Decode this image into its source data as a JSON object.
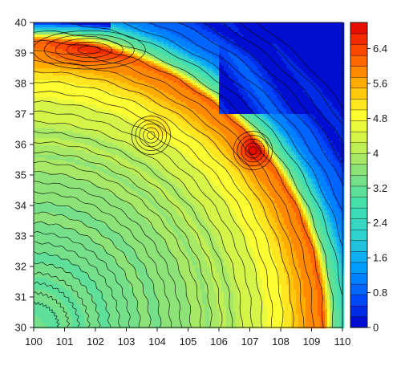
{
  "chart_data": {
    "type": "heatmap",
    "subtype": "filled-contour",
    "title": "",
    "xlabel": "",
    "ylabel": "",
    "xlim": [
      100,
      110
    ],
    "ylim": [
      30,
      40
    ],
    "x_ticks": [
      "100",
      "101",
      "102",
      "103",
      "104",
      "105",
      "106",
      "107",
      "108",
      "109",
      "110"
    ],
    "y_ticks": [
      "30",
      "31",
      "32",
      "33",
      "34",
      "35",
      "36",
      "37",
      "38",
      "39",
      "40"
    ],
    "colorbar": {
      "range": [
        0,
        7.0
      ],
      "ticks": [
        "0",
        "0.8",
        "1.6",
        "2.4",
        "3.2",
        "4",
        "4.8",
        "5.6",
        "6.4"
      ],
      "tick_values": [
        0,
        0.8,
        1.6,
        2.4,
        3.2,
        4.0,
        4.8,
        5.6,
        6.4
      ],
      "levels": 28,
      "colormap": [
        "#0000c8",
        "#0050ff",
        "#00a0ff",
        "#30d0d0",
        "#40e0b0",
        "#80e080",
        "#c8f050",
        "#ffff30",
        "#ffb000",
        "#ff5000",
        "#e00000"
      ]
    },
    "field_features": {
      "arcs_center": [
        100,
        30
      ],
      "values_by_radius": [
        {
          "r": 0,
          "value": 3.2
        },
        {
          "r": 2.5,
          "value": 3.3
        },
        {
          "r": 4.5,
          "value": 3.6
        },
        {
          "r": 6.0,
          "value": 3.9
        },
        {
          "r": 7.0,
          "value": 4.3
        },
        {
          "r": 7.7,
          "value": 4.8
        },
        {
          "r": 8.4,
          "value": 5.3
        },
        {
          "r": 9.0,
          "value": 5.9
        },
        {
          "r": 9.35,
          "value": 6.0
        },
        {
          "r": 9.8,
          "value": 3.2
        },
        {
          "r": 10.4,
          "value": 1.2
        },
        {
          "r": 11.5,
          "value": 0.3
        },
        {
          "r": 13.0,
          "value": 0.1
        }
      ],
      "peaks": [
        {
          "x": 101.8,
          "y": 39.1,
          "value": 6.6,
          "label": "ridge near 101.8°, 39.1°"
        },
        {
          "x": 107.1,
          "y": 35.8,
          "value": 7.0,
          "label": "maximum near 107.1°, 35.8°"
        },
        {
          "x": 103.8,
          "y": 36.3,
          "value": 5.0,
          "label": "local high near 103.8°, 36.3°"
        }
      ]
    }
  }
}
